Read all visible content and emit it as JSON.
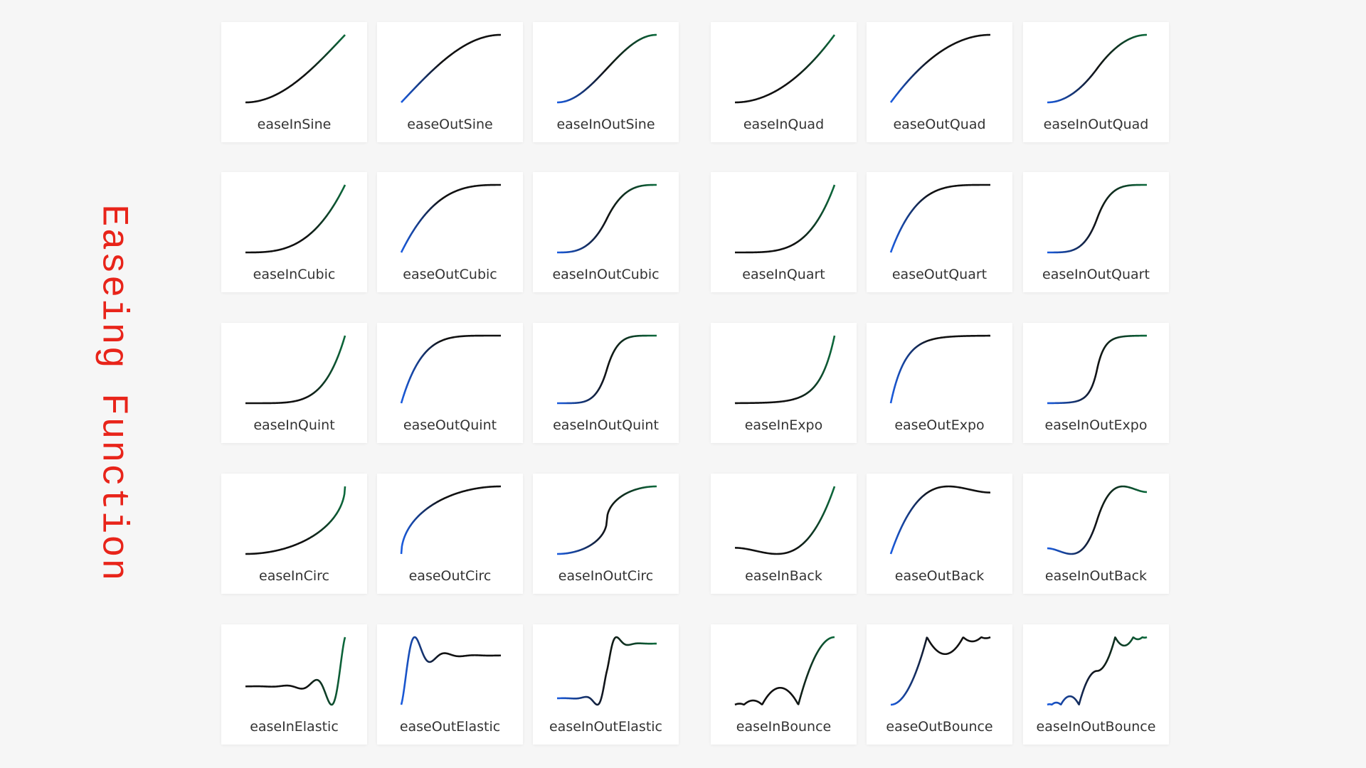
{
  "title": "Easeing Function",
  "cards": [
    "easeInSine",
    "easeOutSine",
    "easeInOutSine",
    "easeInQuad",
    "easeOutQuad",
    "easeInOutQuad",
    "easeInCubic",
    "easeOutCubic",
    "easeInOutCubic",
    "easeInQuart",
    "easeOutQuart",
    "easeInOutQuart",
    "easeInQuint",
    "easeOutQuint",
    "easeInOutQuint",
    "easeInExpo",
    "easeOutExpo",
    "easeInOutExpo",
    "easeInCirc",
    "easeOutCirc",
    "easeInOutCirc",
    "easeInBack",
    "easeOutBack",
    "easeInOutBack",
    "easeInElastic",
    "easeOutElastic",
    "easeInOutElastic",
    "easeInBounce",
    "easeOutBounce",
    "easeInOutBounce"
  ]
}
